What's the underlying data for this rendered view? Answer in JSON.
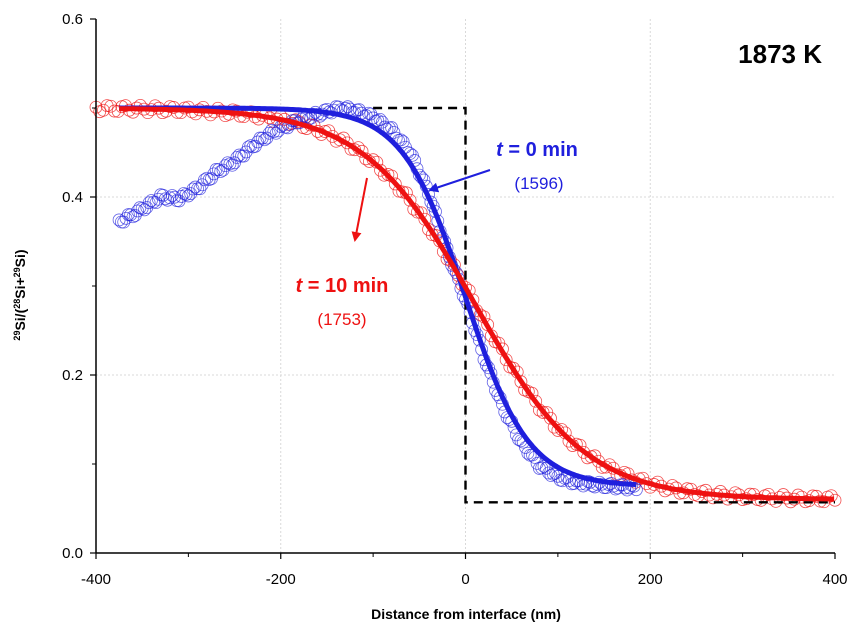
{
  "chart_data": {
    "type": "scatter",
    "corner_label": "1873 K",
    "xlabel": "Distance from interface (nm)",
    "ylabel": {
      "parts": [
        {
          "sup": "29"
        },
        {
          "text": "Si/("
        },
        {
          "sup": "28"
        },
        {
          "text": "Si+"
        },
        {
          "sup": "29"
        },
        {
          "text": "Si)"
        }
      ]
    },
    "xlim": [
      -400,
      400
    ],
    "ylim": [
      0.0,
      0.6
    ],
    "x_ticks": [
      "-400",
      "-200",
      "0",
      "200",
      "400"
    ],
    "y_ticks": [
      "0.0",
      "0.2",
      "0.4",
      "0.6"
    ],
    "x_tick_values": [
      -400,
      -200,
      0,
      200,
      400
    ],
    "y_tick_values": [
      0.0,
      0.2,
      0.4,
      0.6
    ],
    "grid": true,
    "colors": {
      "t0": "#1f1fdd",
      "t10": "#ee1111",
      "step": "#000000",
      "grid": "#d9d9d9"
    },
    "initial_step": {
      "style": "dashed",
      "x": [
        -100,
        0,
        0,
        400
      ],
      "y": [
        0.5,
        0.5,
        0.057,
        0.057
      ]
    },
    "series": [
      {
        "name": "t = 0 min",
        "label_italic": "t",
        "label_rest": " = 0 min",
        "sub": "(1596)",
        "color": "#1f1fdd",
        "marker": "open-circle",
        "x_range": [
          -375,
          185
        ],
        "measured_points": [
          {
            "x": -375,
            "y": 0.372
          },
          {
            "x": -360,
            "y": 0.38
          },
          {
            "x": -345,
            "y": 0.39
          },
          {
            "x": -330,
            "y": 0.4
          },
          {
            "x": -310,
            "y": 0.398
          },
          {
            "x": -290,
            "y": 0.41
          },
          {
            "x": -270,
            "y": 0.428
          },
          {
            "x": -250,
            "y": 0.44
          },
          {
            "x": -230,
            "y": 0.458
          },
          {
            "x": -210,
            "y": 0.472
          },
          {
            "x": -190,
            "y": 0.482
          },
          {
            "x": -170,
            "y": 0.49
          },
          {
            "x": -150,
            "y": 0.496
          },
          {
            "x": -135,
            "y": 0.5
          },
          {
            "x": -120,
            "y": 0.497
          },
          {
            "x": -100,
            "y": 0.49
          },
          {
            "x": -80,
            "y": 0.475
          },
          {
            "x": -60,
            "y": 0.45
          },
          {
            "x": -40,
            "y": 0.405
          },
          {
            "x": -20,
            "y": 0.34
          },
          {
            "x": 0,
            "y": 0.285
          },
          {
            "x": 20,
            "y": 0.22
          },
          {
            "x": 40,
            "y": 0.165
          },
          {
            "x": 60,
            "y": 0.125
          },
          {
            "x": 80,
            "y": 0.098
          },
          {
            "x": 100,
            "y": 0.085
          },
          {
            "x": 120,
            "y": 0.079
          },
          {
            "x": 140,
            "y": 0.077
          },
          {
            "x": 160,
            "y": 0.075
          },
          {
            "x": 185,
            "y": 0.073
          }
        ],
        "fit": {
          "x_range": [
            -375,
            185
          ],
          "c_high": 0.5,
          "c_low": 0.075,
          "x0": 0,
          "width": 34
        }
      },
      {
        "name": "t = 10 min",
        "label_italic": "t",
        "label_rest": " = 10 min",
        "sub": "(1753)",
        "color": "#ee1111",
        "marker": "open-circle",
        "x_range": [
          -400,
          400
        ],
        "fit": {
          "x_range": [
            -375,
            400
          ],
          "c_high": 0.5,
          "c_low": 0.06,
          "x0": 10,
          "width": 60
        }
      }
    ]
  }
}
